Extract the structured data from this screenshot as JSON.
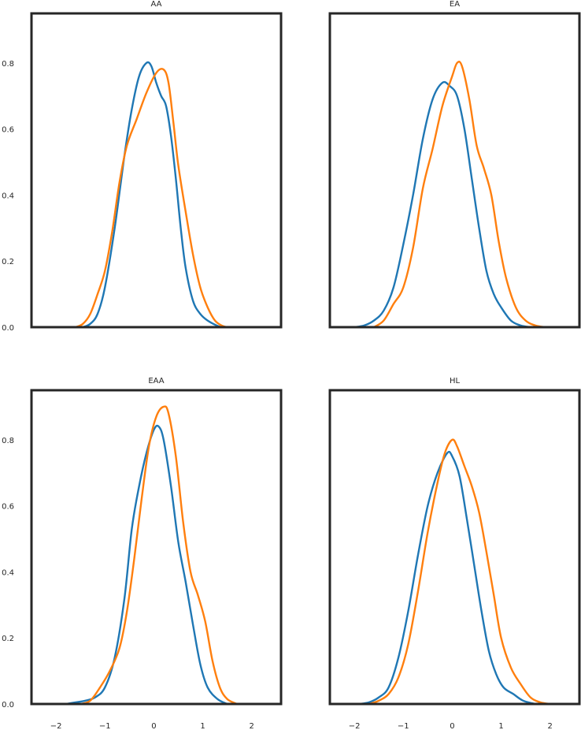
{
  "chart_data": [
    {
      "type": "line",
      "title": "AA",
      "xlim": [
        -2.5,
        2.6
      ],
      "ylim": [
        0,
        0.95
      ],
      "xticks": [
        "−2",
        "−1",
        "0",
        "1",
        "2"
      ],
      "yticks": [
        "0.0",
        "0.2",
        "0.4",
        "0.6",
        "0.8"
      ],
      "xtick_values": [
        -2,
        -1,
        0,
        1,
        2
      ],
      "ytick_values": [
        0,
        0.2,
        0.4,
        0.6,
        0.8
      ],
      "show_xticks": false,
      "show_yticks": true,
      "series": [
        {
          "color": "#1f77b4",
          "points": [
            [
              -1.45,
              0
            ],
            [
              -1.3,
              0.01
            ],
            [
              -1.15,
              0.04
            ],
            [
              -1.0,
              0.12
            ],
            [
              -0.8,
              0.3
            ],
            [
              -0.6,
              0.52
            ],
            [
              -0.45,
              0.66
            ],
            [
              -0.3,
              0.76
            ],
            [
              -0.15,
              0.8
            ],
            [
              -0.05,
              0.79
            ],
            [
              0.05,
              0.74
            ],
            [
              0.15,
              0.7
            ],
            [
              0.25,
              0.67
            ],
            [
              0.35,
              0.58
            ],
            [
              0.45,
              0.45
            ],
            [
              0.55,
              0.3
            ],
            [
              0.65,
              0.18
            ],
            [
              0.8,
              0.08
            ],
            [
              0.95,
              0.04
            ],
            [
              1.1,
              0.02
            ],
            [
              1.3,
              0.004
            ],
            [
              1.4,
              0
            ]
          ]
        },
        {
          "color": "#ff7f0e",
          "points": [
            [
              -1.6,
              0
            ],
            [
              -1.45,
              0.01
            ],
            [
              -1.3,
              0.04
            ],
            [
              -1.15,
              0.1
            ],
            [
              -1.0,
              0.17
            ],
            [
              -0.85,
              0.29
            ],
            [
              -0.7,
              0.44
            ],
            [
              -0.55,
              0.55
            ],
            [
              -0.35,
              0.63
            ],
            [
              -0.15,
              0.71
            ],
            [
              0.05,
              0.77
            ],
            [
              0.2,
              0.78
            ],
            [
              0.3,
              0.74
            ],
            [
              0.4,
              0.62
            ],
            [
              0.5,
              0.49
            ],
            [
              0.65,
              0.35
            ],
            [
              0.8,
              0.22
            ],
            [
              0.95,
              0.12
            ],
            [
              1.1,
              0.06
            ],
            [
              1.25,
              0.02
            ],
            [
              1.4,
              0.004
            ],
            [
              1.5,
              0
            ]
          ]
        }
      ]
    },
    {
      "type": "line",
      "title": "EA",
      "xlim": [
        -2.5,
        2.6
      ],
      "ylim": [
        0,
        0.95
      ],
      "xticks": [
        "−2",
        "−1",
        "0",
        "1",
        "2"
      ],
      "yticks": [
        "0.0",
        "0.2",
        "0.4",
        "0.6",
        "0.8"
      ],
      "xtick_values": [
        -2,
        -1,
        0,
        1,
        2
      ],
      "ytick_values": [
        0,
        0.2,
        0.4,
        0.6,
        0.8
      ],
      "show_xticks": false,
      "show_yticks": false,
      "series": [
        {
          "color": "#1f77b4",
          "points": [
            [
              -2.0,
              0
            ],
            [
              -1.8,
              0.005
            ],
            [
              -1.6,
              0.02
            ],
            [
              -1.4,
              0.05
            ],
            [
              -1.2,
              0.12
            ],
            [
              -1.0,
              0.25
            ],
            [
              -0.8,
              0.4
            ],
            [
              -0.6,
              0.57
            ],
            [
              -0.4,
              0.69
            ],
            [
              -0.2,
              0.74
            ],
            [
              -0.05,
              0.73
            ],
            [
              0.1,
              0.7
            ],
            [
              0.25,
              0.6
            ],
            [
              0.4,
              0.45
            ],
            [
              0.55,
              0.3
            ],
            [
              0.7,
              0.17
            ],
            [
              0.85,
              0.1
            ],
            [
              1.0,
              0.06
            ],
            [
              1.2,
              0.02
            ],
            [
              1.4,
              0.005
            ],
            [
              1.6,
              0
            ]
          ]
        },
        {
          "color": "#ff7f0e",
          "points": [
            [
              -1.6,
              0
            ],
            [
              -1.4,
              0.02
            ],
            [
              -1.2,
              0.07
            ],
            [
              -1.0,
              0.12
            ],
            [
              -0.8,
              0.24
            ],
            [
              -0.6,
              0.42
            ],
            [
              -0.4,
              0.54
            ],
            [
              -0.2,
              0.67
            ],
            [
              0.0,
              0.76
            ],
            [
              0.1,
              0.8
            ],
            [
              0.2,
              0.79
            ],
            [
              0.35,
              0.69
            ],
            [
              0.5,
              0.55
            ],
            [
              0.65,
              0.48
            ],
            [
              0.8,
              0.4
            ],
            [
              0.95,
              0.26
            ],
            [
              1.1,
              0.15
            ],
            [
              1.3,
              0.06
            ],
            [
              1.5,
              0.02
            ],
            [
              1.7,
              0.005
            ],
            [
              1.9,
              0
            ]
          ]
        }
      ]
    },
    {
      "type": "line",
      "title": "EAA",
      "xlim": [
        -2.5,
        2.6
      ],
      "ylim": [
        0,
        0.95
      ],
      "xticks": [
        "−2",
        "−1",
        "0",
        "1",
        "2"
      ],
      "yticks": [
        "0.0",
        "0.2",
        "0.4",
        "0.6",
        "0.8"
      ],
      "xtick_values": [
        -2,
        -1,
        0,
        1,
        2
      ],
      "ytick_values": [
        0,
        0.2,
        0.4,
        0.6,
        0.8
      ],
      "show_xticks": true,
      "show_yticks": true,
      "series": [
        {
          "color": "#1f77b4",
          "points": [
            [
              -1.8,
              0
            ],
            [
              -1.6,
              0.005
            ],
            [
              -1.4,
              0.01
            ],
            [
              -1.2,
              0.02
            ],
            [
              -1.0,
              0.05
            ],
            [
              -0.8,
              0.14
            ],
            [
              -0.6,
              0.32
            ],
            [
              -0.45,
              0.53
            ],
            [
              -0.3,
              0.66
            ],
            [
              -0.15,
              0.76
            ],
            [
              0.0,
              0.83
            ],
            [
              0.1,
              0.84
            ],
            [
              0.2,
              0.8
            ],
            [
              0.35,
              0.66
            ],
            [
              0.5,
              0.49
            ],
            [
              0.65,
              0.37
            ],
            [
              0.8,
              0.24
            ],
            [
              0.95,
              0.12
            ],
            [
              1.1,
              0.05
            ],
            [
              1.3,
              0.015
            ],
            [
              1.5,
              0
            ]
          ]
        },
        {
          "color": "#ff7f0e",
          "points": [
            [
              -1.5,
              0
            ],
            [
              -1.3,
              0.01
            ],
            [
              -1.1,
              0.05
            ],
            [
              -0.9,
              0.1
            ],
            [
              -0.7,
              0.17
            ],
            [
              -0.55,
              0.28
            ],
            [
              -0.4,
              0.44
            ],
            [
              -0.25,
              0.62
            ],
            [
              -0.1,
              0.78
            ],
            [
              0.05,
              0.87
            ],
            [
              0.2,
              0.9
            ],
            [
              0.3,
              0.88
            ],
            [
              0.45,
              0.75
            ],
            [
              0.6,
              0.55
            ],
            [
              0.75,
              0.4
            ],
            [
              0.9,
              0.33
            ],
            [
              1.05,
              0.25
            ],
            [
              1.2,
              0.13
            ],
            [
              1.35,
              0.05
            ],
            [
              1.5,
              0.015
            ],
            [
              1.7,
              0
            ]
          ]
        }
      ]
    },
    {
      "type": "line",
      "title": "HL",
      "xlim": [
        -2.5,
        2.6
      ],
      "ylim": [
        0,
        0.95
      ],
      "xticks": [
        "−2",
        "−1",
        "0",
        "1",
        "2"
      ],
      "yticks": [
        "0.0",
        "0.2",
        "0.4",
        "0.6",
        "0.8"
      ],
      "xtick_values": [
        -2,
        -1,
        0,
        1,
        2
      ],
      "ytick_values": [
        0,
        0.2,
        0.4,
        0.6,
        0.8
      ],
      "show_xticks": true,
      "show_yticks": false,
      "series": [
        {
          "color": "#1f77b4",
          "points": [
            [
              -1.9,
              0
            ],
            [
              -1.7,
              0.005
            ],
            [
              -1.5,
              0.02
            ],
            [
              -1.3,
              0.05
            ],
            [
              -1.1,
              0.14
            ],
            [
              -0.9,
              0.28
            ],
            [
              -0.7,
              0.45
            ],
            [
              -0.5,
              0.6
            ],
            [
              -0.3,
              0.7
            ],
            [
              -0.1,
              0.76
            ],
            [
              0.0,
              0.75
            ],
            [
              0.15,
              0.69
            ],
            [
              0.3,
              0.56
            ],
            [
              0.45,
              0.42
            ],
            [
              0.6,
              0.28
            ],
            [
              0.75,
              0.16
            ],
            [
              0.9,
              0.09
            ],
            [
              1.05,
              0.05
            ],
            [
              1.25,
              0.03
            ],
            [
              1.45,
              0.01
            ],
            [
              1.7,
              0
            ]
          ]
        },
        {
          "color": "#ff7f0e",
          "points": [
            [
              -1.7,
              0
            ],
            [
              -1.5,
              0.01
            ],
            [
              -1.3,
              0.03
            ],
            [
              -1.1,
              0.08
            ],
            [
              -0.9,
              0.18
            ],
            [
              -0.7,
              0.34
            ],
            [
              -0.5,
              0.52
            ],
            [
              -0.3,
              0.67
            ],
            [
              -0.15,
              0.76
            ],
            [
              0.0,
              0.8
            ],
            [
              0.1,
              0.78
            ],
            [
              0.25,
              0.72
            ],
            [
              0.4,
              0.66
            ],
            [
              0.55,
              0.58
            ],
            [
              0.7,
              0.46
            ],
            [
              0.85,
              0.33
            ],
            [
              1.0,
              0.2
            ],
            [
              1.2,
              0.11
            ],
            [
              1.4,
              0.06
            ],
            [
              1.6,
              0.02
            ],
            [
              1.8,
              0.005
            ],
            [
              2.0,
              0
            ]
          ]
        }
      ]
    }
  ]
}
